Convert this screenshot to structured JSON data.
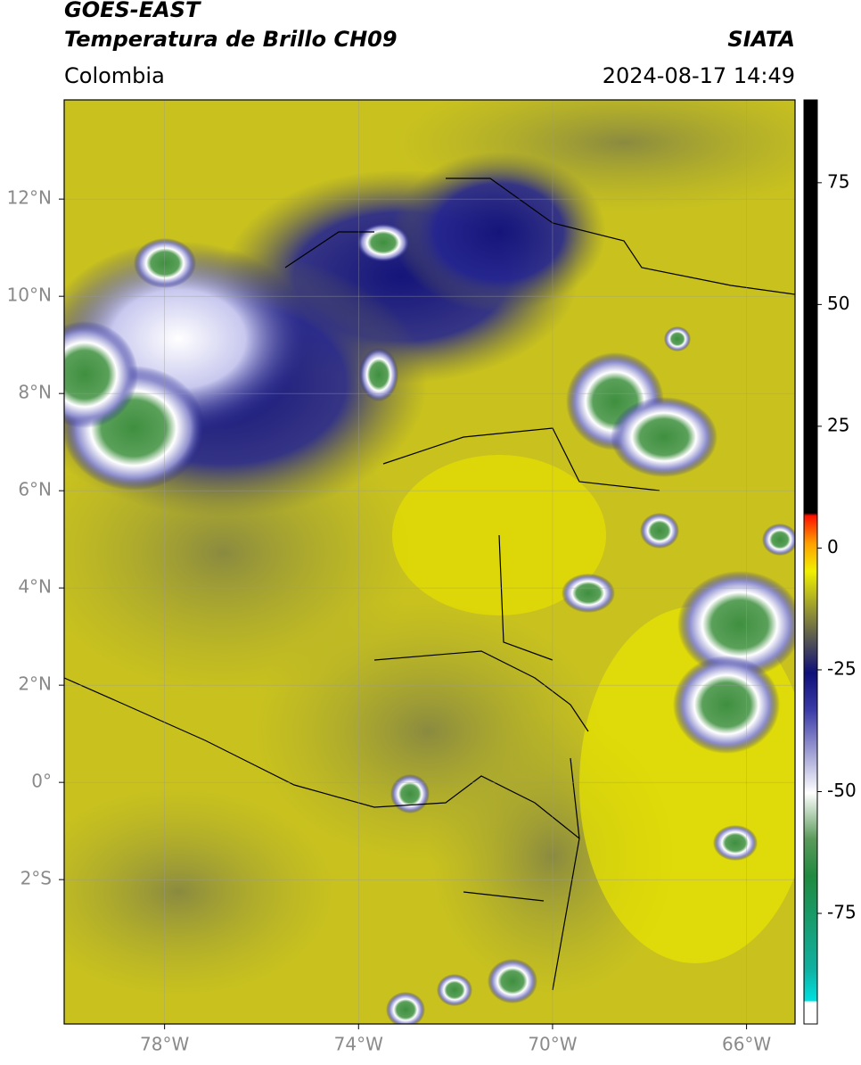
{
  "chart_data": {
    "type": "map",
    "title": "GOES-EAST",
    "subtitle": "Temperatura de Brillo CH09",
    "source": "SIATA",
    "region": "Colombia",
    "datetime": "2024-08-17 14:49",
    "xlim": [
      -80.07,
      -65.0
    ],
    "ylim": [
      -4.97,
      14.04
    ],
    "xticks": [
      {
        "value": -78,
        "label": "78°W"
      },
      {
        "value": -74,
        "label": "74°W"
      },
      {
        "value": -70,
        "label": "70°W"
      },
      {
        "value": -66,
        "label": "66°W"
      }
    ],
    "yticks": [
      {
        "value": 12,
        "label": "12°N"
      },
      {
        "value": 10,
        "label": "10°N"
      },
      {
        "value": 8,
        "label": "8°N"
      },
      {
        "value": 6,
        "label": "6°N"
      },
      {
        "value": 4,
        "label": "4°N"
      },
      {
        "value": 2,
        "label": "2°N"
      },
      {
        "value": 0,
        "label": "0°"
      },
      {
        "value": -2,
        "label": "2°S"
      }
    ],
    "grid": true,
    "colorbar": {
      "lim": [
        -97.7,
        92
      ],
      "ticks": [
        75,
        50,
        25,
        0,
        -25,
        -50,
        -75
      ]
    }
  }
}
